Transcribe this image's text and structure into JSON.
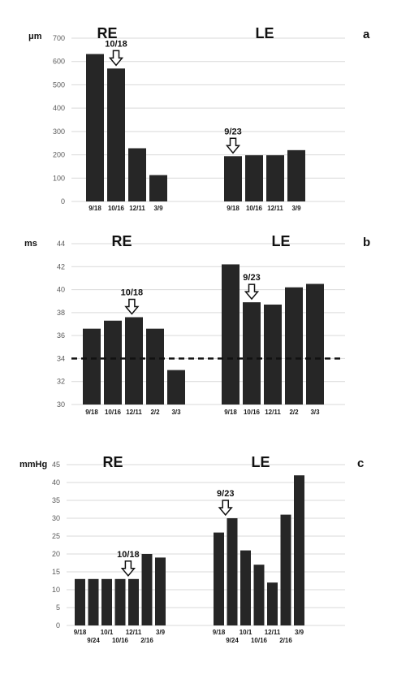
{
  "chart_data": [
    {
      "type": "bar",
      "panel_label": "a",
      "unit": "μm",
      "ylim": [
        0,
        700
      ],
      "ticks": [
        "0",
        "100",
        "200",
        "300",
        "400",
        "500",
        "600",
        "700"
      ],
      "grid": true,
      "groups": [
        {
          "name": "RE",
          "categories": [
            "9/18",
            "10/16",
            "12/11",
            "3/9"
          ],
          "values": [
            632,
            570,
            228,
            113
          ],
          "annotation": {
            "text": "10/18",
            "at_bar": 1
          }
        },
        {
          "name": "LE",
          "categories": [
            "9/18",
            "10/16",
            "12/11",
            "3/9"
          ],
          "values": [
            194,
            198,
            198,
            220
          ],
          "annotation": {
            "text": "9/23",
            "at_bar": 0
          }
        }
      ]
    },
    {
      "type": "bar",
      "panel_label": "b",
      "unit": "ms",
      "ylim": [
        30,
        44
      ],
      "ticks": [
        "30",
        "32",
        "34",
        "36",
        "38",
        "40",
        "42",
        "44"
      ],
      "grid": true,
      "reference_line": 34,
      "groups": [
        {
          "name": "RE",
          "categories": [
            "9/18",
            "10/16",
            "12/11",
            "2/2",
            "3/3"
          ],
          "values": [
            36.6,
            37.3,
            37.6,
            36.6,
            33.0
          ],
          "annotation": {
            "text": "10/18",
            "at_bar": 1.9
          }
        },
        {
          "name": "LE",
          "categories": [
            "9/18",
            "10/16",
            "12/11",
            "2/2",
            "3/3"
          ],
          "values": [
            42.2,
            38.9,
            38.7,
            40.2,
            40.5
          ],
          "annotation": {
            "text": "9/23",
            "at_bar": 1
          }
        }
      ]
    },
    {
      "type": "bar",
      "panel_label": "c",
      "unit": "mmHg",
      "ylim": [
        0,
        45
      ],
      "ticks": [
        "0",
        "5",
        "10",
        "15",
        "20",
        "25",
        "30",
        "35",
        "40",
        "45"
      ],
      "grid": true,
      "groups": [
        {
          "name": "RE",
          "categories": [
            "9/18",
            "9/24",
            "10/1",
            "10/16",
            "12/11",
            "2/16",
            "3/9"
          ],
          "values": [
            13,
            13,
            13,
            13,
            13,
            20,
            19
          ],
          "annotation": {
            "text": "10/18",
            "at_bar": 3.6
          }
        },
        {
          "name": "LE",
          "categories": [
            "9/18",
            "9/24",
            "10/1",
            "10/16",
            "12/11",
            "2/16",
            "3/9"
          ],
          "values": [
            26,
            30,
            21,
            17,
            12,
            31,
            42
          ],
          "annotation": {
            "text": "9/23",
            "at_bar": 0.5
          }
        }
      ]
    }
  ]
}
